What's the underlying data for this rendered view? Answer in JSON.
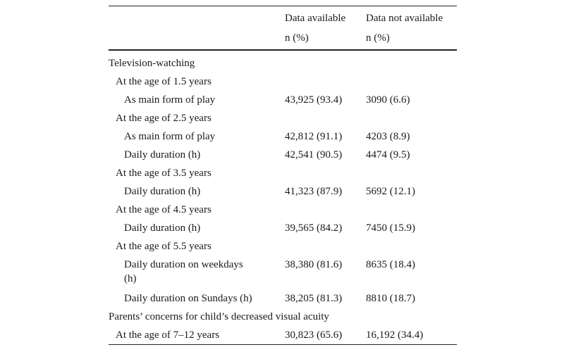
{
  "header": {
    "col1_line1": "Data available",
    "col1_line2": "n (%)",
    "col2_line1": "Data not available",
    "col2_line2": "n (%)"
  },
  "rows": [
    {
      "label": "Television-watching",
      "available": "",
      "not_available": ""
    },
    {
      "label": "At the age of 1.5 years",
      "available": "",
      "not_available": ""
    },
    {
      "label": "As main form of play",
      "available": "43,925 (93.4)",
      "not_available": "3090 (6.6)"
    },
    {
      "label": "At the age of 2.5 years",
      "available": "",
      "not_available": ""
    },
    {
      "label": "As main form of play",
      "available": "42,812 (91.1)",
      "not_available": "4203 (8.9)"
    },
    {
      "label": "Daily duration (h)",
      "available": "42,541 (90.5)",
      "not_available": "4474 (9.5)"
    },
    {
      "label": "At the age of 3.5 years",
      "available": "",
      "not_available": ""
    },
    {
      "label": "Daily duration (h)",
      "available": "41,323 (87.9)",
      "not_available": "5692 (12.1)"
    },
    {
      "label": "At the age of 4.5 years",
      "available": "",
      "not_available": ""
    },
    {
      "label": "Daily duration (h)",
      "available": "39,565 (84.2)",
      "not_available": "7450 (15.9)"
    },
    {
      "label": "At the age of 5.5 years",
      "available": "",
      "not_available": ""
    },
    {
      "label": "Daily duration on weekdays",
      "label_cont": "(h)",
      "available": "38,380 (81.6)",
      "not_available": "8635 (18.4)"
    },
    {
      "label": "Daily duration on Sundays (h)",
      "available": "38,205 (81.3)",
      "not_available": "8810 (18.7)"
    },
    {
      "label": "Parents’ concerns for child’s decreased visual acuity",
      "available": "",
      "not_available": ""
    },
    {
      "label": "At the age of 7–12 years",
      "available": "30,823 (65.6)",
      "not_available": "16,192 (34.4)"
    }
  ]
}
